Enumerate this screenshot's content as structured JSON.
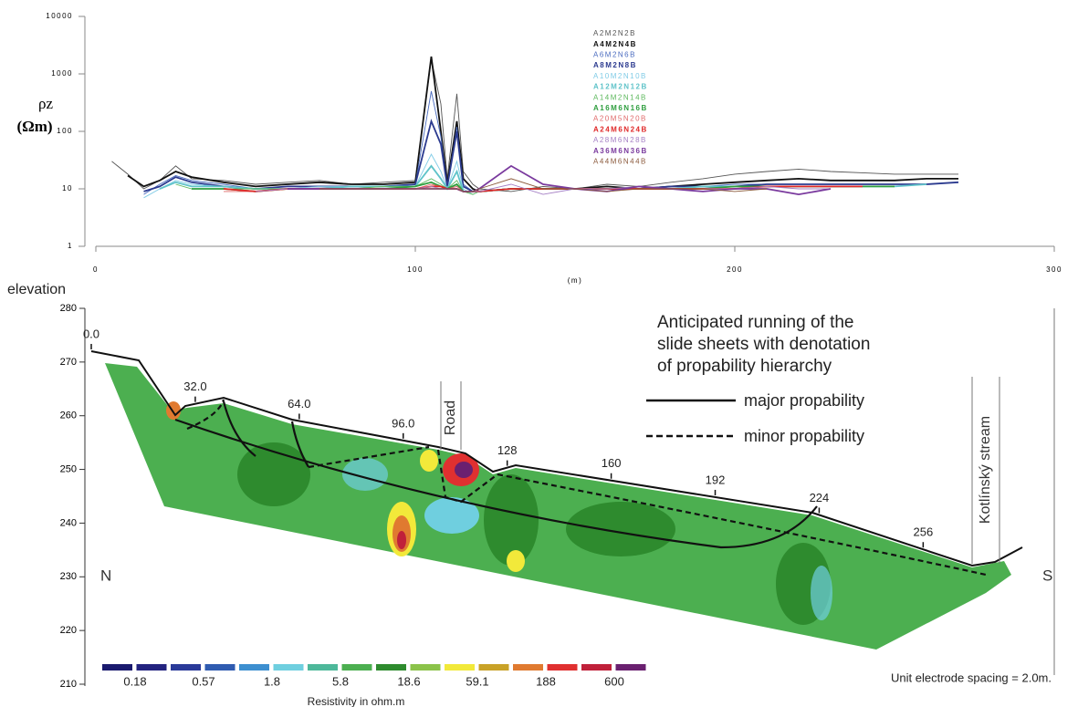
{
  "chart_data": [
    {
      "type": "line",
      "log_y": true,
      "ylabel": "ρz",
      "yunit": "(Ωm)",
      "xlabel": "(m)",
      "xlim": [
        0,
        300
      ],
      "xticks": [
        0,
        100,
        200,
        300
      ],
      "ylim": [
        1,
        10000
      ],
      "yticks": [
        1,
        10,
        100,
        1000,
        10000
      ],
      "x": [
        5,
        10,
        15,
        20,
        25,
        30,
        40,
        50,
        60,
        70,
        80,
        90,
        100,
        105,
        108,
        110,
        113,
        115,
        118,
        120,
        130,
        140,
        150,
        160,
        170,
        180,
        190,
        200,
        210,
        220,
        230,
        240,
        250,
        260,
        270
      ],
      "series": [
        {
          "name": "A2M2N2B",
          "color": "#555555",
          "bold": false,
          "values": [
            30,
            18,
            10,
            14,
            25,
            15,
            14,
            12,
            13,
            14,
            12,
            13,
            14,
            1800,
            300,
            15,
            450,
            20,
            12,
            10,
            9,
            11,
            10,
            12,
            11,
            13,
            15,
            18,
            20,
            22,
            20,
            19,
            18,
            18,
            18
          ]
        },
        {
          "name": "A4M2N4B",
          "color": "#111111",
          "bold": true,
          "values": [
            null,
            17,
            11,
            14,
            20,
            16,
            13,
            11,
            12,
            13,
            12,
            12,
            13,
            2000,
            100,
            12,
            150,
            15,
            10,
            9,
            10,
            10,
            10,
            11,
            10,
            11,
            12,
            13,
            14,
            15,
            14,
            14,
            14,
            15,
            15
          ]
        },
        {
          "name": "A6M2N6B",
          "color": "#4a6bbf",
          "bold": false,
          "values": [
            null,
            null,
            8,
            12,
            17,
            14,
            12,
            10,
            11,
            11,
            11,
            11,
            12,
            500,
            80,
            11,
            120,
            12,
            9,
            9,
            10,
            10,
            10,
            10,
            10,
            11,
            11,
            12,
            12,
            12,
            12,
            12,
            12,
            12,
            13
          ]
        },
        {
          "name": "A8M2N8B",
          "color": "#2b3a8f",
          "bold": true,
          "values": [
            null,
            null,
            9,
            11,
            16,
            13,
            11,
            10,
            11,
            11,
            11,
            11,
            12,
            150,
            60,
            11,
            100,
            11,
            9,
            9,
            10,
            10,
            10,
            10,
            10,
            11,
            11,
            11,
            12,
            12,
            12,
            12,
            12,
            12,
            13
          ]
        },
        {
          "name": "A10M2N10B",
          "color": "#7fcbe6",
          "bold": false,
          "values": [
            null,
            null,
            7,
            10,
            14,
            12,
            11,
            10,
            10,
            11,
            11,
            11,
            11,
            40,
            20,
            10,
            30,
            10,
            8,
            9,
            10,
            10,
            10,
            10,
            10,
            10,
            11,
            11,
            11,
            11,
            11,
            11,
            11,
            12,
            null
          ]
        },
        {
          "name": "A12M2N12B",
          "color": "#5fc3c9",
          "bold": true,
          "values": [
            null,
            null,
            null,
            10,
            13,
            11,
            11,
            10,
            10,
            10,
            11,
            11,
            11,
            25,
            15,
            10,
            20,
            9,
            9,
            9,
            10,
            10,
            10,
            10,
            10,
            10,
            11,
            11,
            11,
            11,
            11,
            11,
            11,
            12,
            null
          ]
        },
        {
          "name": "A14M2N14B",
          "color": "#5cb85c",
          "bold": false,
          "values": [
            null,
            null,
            null,
            null,
            12,
            10,
            10,
            10,
            10,
            10,
            10,
            11,
            11,
            15,
            12,
            10,
            14,
            9,
            8,
            9,
            10,
            10,
            10,
            10,
            10,
            10,
            10,
            11,
            11,
            11,
            11,
            11,
            11,
            null,
            null
          ]
        },
        {
          "name": "A16M6N16B",
          "color": "#2e9e3e",
          "bold": true,
          "values": [
            null,
            null,
            null,
            null,
            null,
            10,
            10,
            9,
            10,
            10,
            10,
            10,
            11,
            13,
            11,
            10,
            12,
            9,
            9,
            9,
            10,
            10,
            10,
            10,
            10,
            10,
            10,
            11,
            11,
            11,
            11,
            11,
            11,
            null,
            null
          ]
        },
        {
          "name": "A20M5N20B",
          "color": "#e06a6a",
          "bold": false,
          "values": [
            null,
            null,
            null,
            null,
            null,
            null,
            9,
            9,
            10,
            10,
            10,
            10,
            10,
            12,
            11,
            10,
            11,
            9,
            9,
            9,
            10,
            10,
            10,
            10,
            10,
            10,
            10,
            10,
            11,
            11,
            11,
            11,
            null,
            null,
            null
          ]
        },
        {
          "name": "A24M6N24B",
          "color": "#e02828",
          "bold": true,
          "values": [
            null,
            null,
            null,
            null,
            null,
            null,
            10,
            9,
            10,
            10,
            10,
            10,
            10,
            11,
            11,
            10,
            10,
            9,
            9,
            9,
            10,
            10,
            10,
            10,
            10,
            10,
            10,
            10,
            11,
            11,
            11,
            11,
            null,
            null,
            null
          ]
        },
        {
          "name": "A28M6N28B",
          "color": "#a57fc4",
          "bold": false,
          "values": [
            null,
            null,
            null,
            null,
            null,
            null,
            null,
            9,
            10,
            10,
            10,
            10,
            10,
            11,
            10,
            10,
            10,
            9,
            9,
            9,
            12,
            8,
            10,
            10,
            11,
            10,
            10,
            10,
            11,
            10,
            10,
            null,
            null,
            null,
            null
          ]
        },
        {
          "name": "A36M6N36B",
          "color": "#7a3a9e",
          "bold": true,
          "values": [
            null,
            null,
            null,
            null,
            null,
            null,
            null,
            null,
            10,
            10,
            10,
            10,
            10,
            10,
            10,
            10,
            10,
            9,
            9,
            10,
            25,
            12,
            10,
            9,
            11,
            10,
            9,
            10,
            10,
            8,
            10,
            null,
            null,
            null,
            null
          ]
        },
        {
          "name": "A44M6N44B",
          "color": "#8b5a3c",
          "bold": false,
          "values": [
            null,
            null,
            null,
            null,
            null,
            null,
            null,
            null,
            null,
            10,
            10,
            10,
            10,
            10,
            10,
            10,
            10,
            9,
            9,
            10,
            15,
            10,
            10,
            9,
            10,
            10,
            10,
            9,
            10,
            null,
            null,
            null,
            null,
            null,
            null
          ]
        }
      ]
    },
    {
      "type": "section",
      "ylabel": "elevation",
      "ylim": [
        210,
        280
      ],
      "yticks": [
        210,
        220,
        230,
        240,
        250,
        260,
        270,
        280
      ],
      "distances": [
        {
          "value": 0,
          "label": "0.0"
        },
        {
          "value": 32,
          "label": "32.0"
        },
        {
          "value": 64,
          "label": "64.0"
        },
        {
          "value": 96,
          "label": "96.0"
        },
        128,
        160,
        192,
        224,
        256
      ],
      "title_lines": [
        "Anticipated running of the",
        "slide sheets with denotation",
        "of propability hierarchy"
      ],
      "legend": {
        "solid": "major propability",
        "dashed": "minor propability"
      },
      "road": "Road",
      "stream": "Kotlínský stream",
      "left_end": "N",
      "right_end": "S",
      "note": "Unit electrode spacing = 2.0m.",
      "scale_title": "Resistivity in ohm.m",
      "scale_levels": [
        0.18,
        0.57,
        1.8,
        5.8,
        18.6,
        59.1,
        188,
        600
      ],
      "scale_colors": [
        "#1a1a6e",
        "#23237f",
        "#2a3a99",
        "#2f5bb0",
        "#3d8fd0",
        "#6fcfdf",
        "#4db89a",
        "#4caf50",
        "#2e8b2e",
        "#8bc34a",
        "#f2e93a",
        "#c9a227",
        "#e07a30",
        "#e03030",
        "#c0203a",
        "#6a2070"
      ]
    }
  ]
}
